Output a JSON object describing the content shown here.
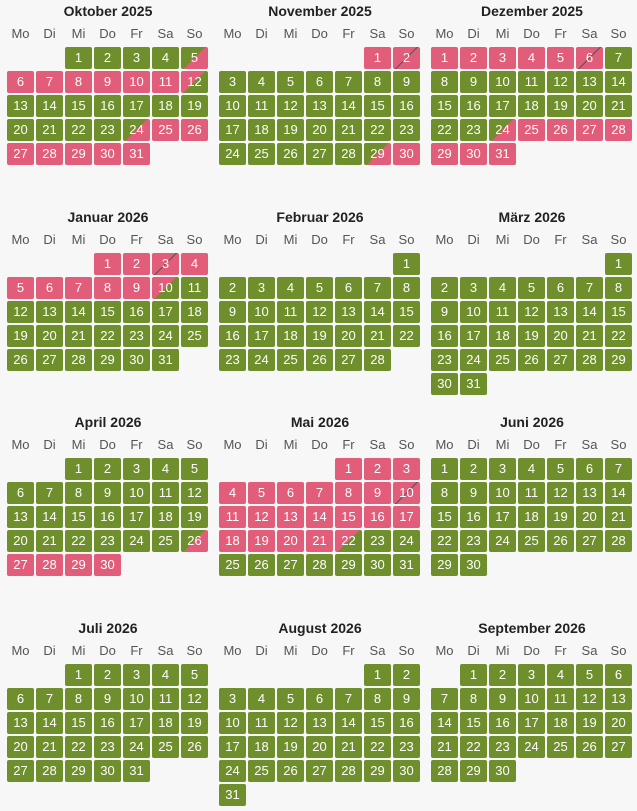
{
  "weekdays": [
    "Mo",
    "Di",
    "Mi",
    "Do",
    "Fr",
    "Sa",
    "So"
  ],
  "colors": {
    "free": "#6f8f2c",
    "booked": "#e25d79",
    "background": "#f7f7f7"
  },
  "months": [
    {
      "title": "Oktober 2025",
      "offset": 2,
      "days": 31,
      "booked": [
        6,
        7,
        8,
        9,
        10,
        11,
        25,
        26,
        27,
        28,
        29,
        30,
        31
      ],
      "arrival": [
        5,
        24
      ],
      "departure": [
        12
      ],
      "changeover": []
    },
    {
      "title": "November 2025",
      "offset": 5,
      "days": 30,
      "booked": [
        1,
        30
      ],
      "arrival": [
        29
      ],
      "departure": [],
      "changeover": [
        2
      ]
    },
    {
      "title": "Dezember 2025",
      "offset": 0,
      "days": 31,
      "booked": [
        1,
        2,
        3,
        4,
        5,
        25,
        26,
        27,
        28,
        29,
        30,
        31
      ],
      "arrival": [
        24
      ],
      "departure": [],
      "changeover": [
        6
      ]
    },
    {
      "title": "Januar 2026",
      "offset": 3,
      "days": 31,
      "booked": [
        1,
        2,
        4,
        5,
        6,
        7,
        8,
        9
      ],
      "arrival": [],
      "departure": [
        10
      ],
      "changeover": [
        3
      ]
    },
    {
      "title": "Februar 2026",
      "offset": 6,
      "days": 28,
      "booked": [],
      "arrival": [],
      "departure": [],
      "changeover": []
    },
    {
      "title": "März 2026",
      "offset": 6,
      "days": 31,
      "booked": [],
      "arrival": [],
      "departure": [],
      "changeover": []
    },
    {
      "title": "April 2026",
      "offset": 2,
      "days": 30,
      "booked": [
        27,
        28,
        29,
        30
      ],
      "arrival": [
        26
      ],
      "departure": [],
      "changeover": []
    },
    {
      "title": "Mai 2026",
      "offset": 4,
      "days": 31,
      "booked": [
        1,
        2,
        3,
        4,
        5,
        6,
        7,
        8,
        9,
        11,
        12,
        13,
        14,
        15,
        16,
        17,
        18,
        19,
        20,
        21
      ],
      "arrival": [],
      "departure": [
        22
      ],
      "changeover": [
        10
      ]
    },
    {
      "title": "Juni 2026",
      "offset": 0,
      "days": 30,
      "booked": [],
      "arrival": [],
      "departure": [],
      "changeover": []
    },
    {
      "title": "Juli 2026",
      "offset": 2,
      "days": 31,
      "booked": [],
      "arrival": [],
      "departure": [],
      "changeover": []
    },
    {
      "title": "August 2026",
      "offset": 5,
      "days": 31,
      "booked": [],
      "arrival": [],
      "departure": [],
      "changeover": []
    },
    {
      "title": "September 2026",
      "offset": 1,
      "days": 30,
      "booked": [],
      "arrival": [],
      "departure": [],
      "changeover": []
    }
  ]
}
